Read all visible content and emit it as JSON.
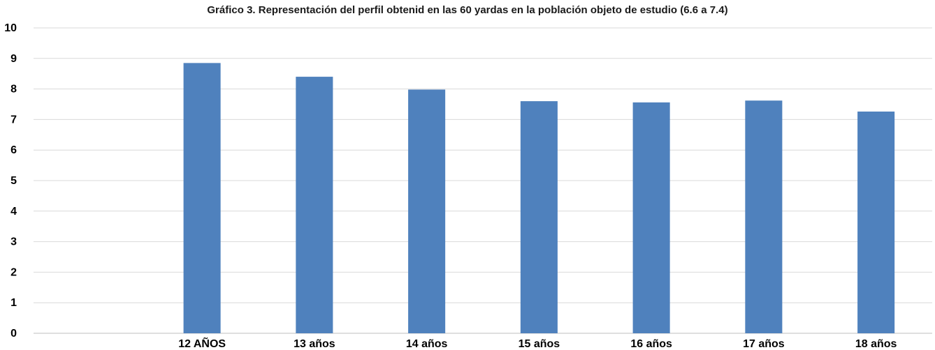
{
  "chart_data": {
    "type": "bar",
    "title": "Gráfico 3. Representación del perfil obtenid en las  60 yardas en la población objeto de estudio (6.6 a 7.4)",
    "xlabel": "",
    "ylabel": "",
    "categories": [
      "",
      "12 AÑOS",
      "13 años",
      "14 años",
      "15 años",
      "16 años",
      "17 años",
      "18 años"
    ],
    "values": [
      null,
      8.85,
      8.4,
      7.98,
      7.6,
      7.56,
      7.62,
      7.26
    ],
    "ylim": [
      0,
      10
    ],
    "yticks": [
      0,
      1,
      2,
      3,
      4,
      5,
      6,
      7,
      8,
      9,
      10
    ],
    "grid": true,
    "legend": "none",
    "bar_color": "#4f81bd",
    "grid_color": "#d9d9d9"
  }
}
